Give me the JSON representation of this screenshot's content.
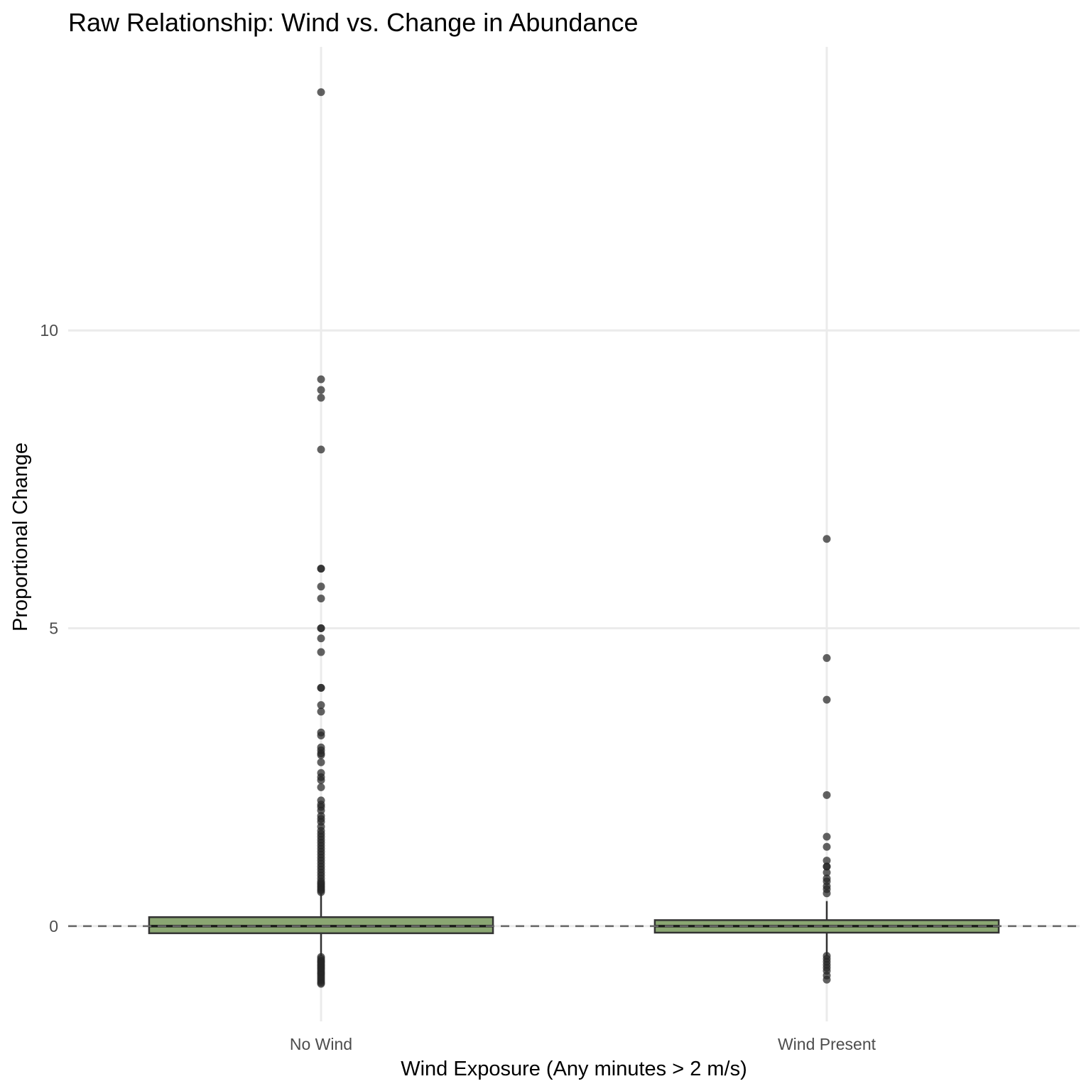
{
  "chart_data": {
    "type": "boxplot",
    "title": "Raw Relationship: Wind vs. Change in Abundance",
    "xlabel": "Wind Exposure (Any minutes > 2 m/s)",
    "ylabel": "Proportional Change",
    "categories": [
      "No Wind",
      "Wind Present"
    ],
    "ylim": [
      -1.6,
      14.76
    ],
    "yticks": [
      0,
      5,
      10
    ],
    "ytick_labels": [
      "0",
      "5",
      "10"
    ],
    "grid": true,
    "reference_line": {
      "y": 0,
      "style": "dashed"
    },
    "box_fill": "#8aa672",
    "boxes": [
      {
        "category": "No Wind",
        "q1": -0.12,
        "median": 0.0,
        "q3": 0.15,
        "whisker_low": -0.5,
        "whisker_high": 0.55,
        "outliers": [
          14.0,
          9.18,
          9.0,
          8.87,
          8.0,
          6.0,
          6.0,
          5.7,
          5.5,
          5.0,
          5.0,
          4.83,
          4.6,
          4.0,
          4.0,
          3.71,
          3.6,
          3.25,
          3.2,
          3.0,
          2.95,
          2.9,
          2.87,
          2.75,
          2.57,
          2.5,
          2.45,
          2.33,
          2.11,
          2.04,
          2.0,
          1.94,
          1.85,
          1.8,
          1.75,
          1.67,
          1.6,
          1.55,
          1.5,
          1.45,
          1.4,
          1.35,
          1.3,
          1.25,
          1.2,
          1.15,
          1.1,
          1.05,
          1.0,
          0.95,
          0.9,
          0.85,
          0.8,
          0.75,
          0.72,
          0.7,
          0.67,
          0.65,
          0.62,
          0.6,
          0.57,
          -0.52,
          -0.55,
          -0.58,
          -0.6,
          -0.62,
          -0.65,
          -0.67,
          -0.7,
          -0.72,
          -0.75,
          -0.78,
          -0.8,
          -0.83,
          -0.86,
          -0.89,
          -0.92,
          -0.95,
          -0.97
        ]
      },
      {
        "category": "Wind Present",
        "q1": -0.11,
        "median": 0.0,
        "q3": 0.1,
        "whisker_low": -0.5,
        "whisker_high": 0.42,
        "outliers": [
          6.5,
          4.5,
          3.8,
          2.2,
          1.5,
          1.33,
          1.1,
          1.0,
          1.0,
          0.9,
          0.8,
          0.75,
          0.67,
          0.62,
          0.55,
          -0.5,
          -0.55,
          -0.6,
          -0.65,
          -0.7,
          -0.75,
          -0.83,
          -0.9
        ]
      }
    ]
  }
}
